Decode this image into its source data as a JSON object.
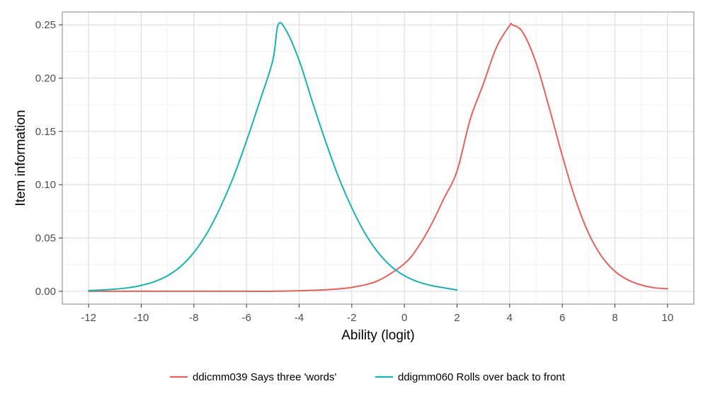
{
  "chart_data": {
    "type": "line",
    "title": "",
    "xlabel": "Ability (logit)",
    "ylabel": "Item information",
    "xlim": [
      -13,
      11
    ],
    "ylim": [
      -0.012,
      0.262
    ],
    "x_major_ticks": [
      -12,
      -10,
      -8,
      -6,
      -4,
      -2,
      0,
      2,
      4,
      6,
      8,
      10
    ],
    "x_tick_labels": [
      "-12",
      "-10",
      "-8",
      "-6",
      "-4",
      "-2",
      "0",
      "2",
      "4",
      "6",
      "8",
      "10"
    ],
    "y_major_ticks": [
      0,
      0.05,
      0.1,
      0.15,
      0.2,
      0.25
    ],
    "y_tick_labels": [
      "0.00",
      "0.05",
      "0.10",
      "0.15",
      "0.20",
      "0.25"
    ],
    "grid": true,
    "legend_position": "bottom",
    "series": [
      {
        "name": "ddicmm039 Says three 'words'",
        "color": "#e8605a",
        "x": [
          -12,
          -11,
          -10,
          -9,
          -8,
          -7,
          -6,
          -5,
          -4,
          -3,
          -2,
          -1,
          0,
          0.5,
          1,
          1.5,
          2,
          2.5,
          3,
          3.5,
          4,
          4.1,
          4.5,
          5,
          5.5,
          6,
          6.5,
          7,
          7.5,
          8,
          8.5,
          9,
          9.5,
          10
        ],
        "y": [
          0.0,
          0.0,
          0.0,
          0.0,
          0.0,
          0.0,
          0.0,
          0.0,
          0.0005,
          0.0014,
          0.0037,
          0.01,
          0.0259,
          0.0408,
          0.0615,
          0.0869,
          0.1128,
          0.1612,
          0.1944,
          0.2289,
          0.2493,
          0.25,
          0.2429,
          0.2147,
          0.1725,
          0.1273,
          0.0862,
          0.0544,
          0.0326,
          0.0188,
          0.0106,
          0.0059,
          0.0033,
          0.0024
        ]
      },
      {
        "name": "ddigmm060 Rolls over back to front",
        "color": "#17b3b5",
        "x": [
          -12,
          -11.5,
          -11,
          -10.5,
          -10,
          -9.5,
          -9,
          -8.5,
          -8,
          -7.5,
          -7,
          -6.5,
          -6,
          -5.5,
          -5,
          -4.8,
          -4.5,
          -4,
          -3.5,
          -3,
          -2.5,
          -2,
          -1.5,
          -1,
          -0.5,
          0,
          0.5,
          1,
          1.5,
          2
        ],
        "y": [
          0.0007,
          0.0012,
          0.002,
          0.0033,
          0.0055,
          0.009,
          0.0146,
          0.0233,
          0.0364,
          0.0546,
          0.0784,
          0.107,
          0.141,
          0.178,
          0.2167,
          0.25,
          0.245,
          0.2167,
          0.178,
          0.141,
          0.107,
          0.0784,
          0.0546,
          0.0364,
          0.0233,
          0.0146,
          0.009,
          0.0055,
          0.0033,
          0.0012
        ]
      }
    ]
  }
}
